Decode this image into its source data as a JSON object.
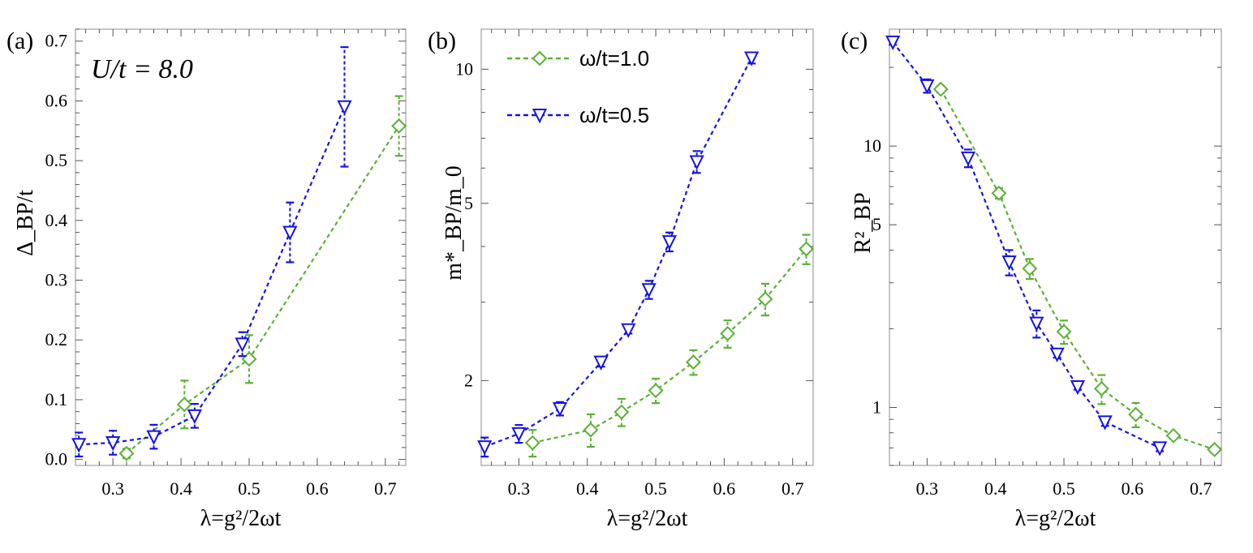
{
  "colors": {
    "green": "#5AB135",
    "blue": "#1414E6",
    "frame": "#a0a0a0"
  },
  "chart_data": [
    {
      "type": "scatter",
      "panel_label": "(a)",
      "annotation": "U/t = 8.0",
      "ylabel": "Δ_BP/t",
      "xlabel": "λ=g²/2ωt",
      "yscale": "linear",
      "xlim": [
        0.245,
        0.73
      ],
      "ylim": [
        -0.01,
        0.72
      ],
      "xticks": [
        0.3,
        0.4,
        0.5,
        0.6,
        0.7
      ],
      "xtick_labels": [
        "0.3",
        "0.4",
        "0.5",
        "0.6",
        "0.7"
      ],
      "yticks": [
        0.0,
        0.1,
        0.2,
        0.3,
        0.4,
        0.5,
        0.6,
        0.7
      ],
      "ytick_labels": [
        "0.0",
        "0.1",
        "0.2",
        "0.3",
        "0.4",
        "0.5",
        "0.6",
        "0.7"
      ],
      "series": [
        {
          "name": "ω/t=1.0",
          "color": "green",
          "marker": "diamond",
          "x": [
            0.32,
            0.405,
            0.5,
            0.72
          ],
          "y": [
            0.01,
            0.092,
            0.168,
            0.558
          ],
          "err": [
            0.008,
            0.04,
            0.04,
            0.05
          ]
        },
        {
          "name": "ω/t=0.5",
          "color": "blue",
          "marker": "triangle-down",
          "x": [
            0.25,
            0.3,
            0.36,
            0.42,
            0.49,
            0.56,
            0.64
          ],
          "y": [
            0.025,
            0.028,
            0.038,
            0.073,
            0.193,
            0.38,
            0.59
          ],
          "err": [
            0.02,
            0.02,
            0.02,
            0.02,
            0.02,
            0.05,
            0.1
          ]
        }
      ]
    },
    {
      "type": "scatter",
      "panel_label": "(b)",
      "ylabel": "m*_BP/m_0",
      "xlabel": "λ=g²/2ωt",
      "yscale": "log",
      "xlim": [
        0.245,
        0.73
      ],
      "ylim": [
        1.29,
        12.3
      ],
      "xticks": [
        0.3,
        0.4,
        0.5,
        0.6,
        0.7
      ],
      "xtick_labels": [
        "0.3",
        "0.4",
        "0.5",
        "0.6",
        "0.7"
      ],
      "yticks": [
        2,
        5,
        10
      ],
      "ytick_labels": [
        "2",
        "5",
        "10"
      ],
      "legend": [
        "ω/t=1.0",
        "ω/t=0.5"
      ],
      "series": [
        {
          "name": "ω/t=1.0",
          "color": "green",
          "marker": "diamond",
          "x": [
            0.32,
            0.405,
            0.45,
            0.5,
            0.555,
            0.605,
            0.66,
            0.72
          ],
          "y": [
            1.45,
            1.55,
            1.7,
            1.9,
            2.2,
            2.55,
            3.05,
            3.95
          ],
          "err": [
            0.1,
            0.13,
            0.12,
            0.12,
            0.14,
            0.18,
            0.25,
            0.3
          ]
        },
        {
          "name": "ω/t=0.5",
          "color": "blue",
          "marker": "triangle-down",
          "x": [
            0.25,
            0.3,
            0.36,
            0.42,
            0.46,
            0.49,
            0.52,
            0.56,
            0.64
          ],
          "y": [
            1.42,
            1.52,
            1.73,
            2.2,
            2.6,
            3.2,
            4.1,
            6.2,
            10.6
          ],
          "err": [
            0.07,
            0.07,
            0.06,
            0.05,
            0.05,
            0.15,
            0.2,
            0.35,
            0.3
          ]
        }
      ]
    },
    {
      "type": "scatter",
      "panel_label": "(c)",
      "ylabel": "R²_BP",
      "xlabel": "λ=g²/2ωt",
      "yscale": "log",
      "xlim": [
        0.245,
        0.73
      ],
      "ylim": [
        0.6,
        28
      ],
      "xticks": [
        0.3,
        0.4,
        0.5,
        0.6,
        0.7
      ],
      "xtick_labels": [
        "0.3",
        "0.4",
        "0.5",
        "0.6",
        "0.7"
      ],
      "yticks": [
        1,
        5,
        10
      ],
      "ytick_labels": [
        "1",
        "5",
        "10"
      ],
      "series": [
        {
          "name": "ω/t=1.0",
          "color": "green",
          "marker": "diamond",
          "x": [
            0.32,
            0.405,
            0.45,
            0.5,
            0.555,
            0.605,
            0.66,
            0.72
          ],
          "y": [
            16.5,
            6.6,
            3.4,
            1.95,
            1.18,
            0.94,
            0.78,
            0.69
          ],
          "err": [
            0.5,
            0.3,
            0.3,
            0.2,
            0.15,
            0.1,
            0.02,
            0.02
          ]
        },
        {
          "name": "ω/t=0.5",
          "color": "blue",
          "marker": "triangle-down",
          "x": [
            0.25,
            0.3,
            0.36,
            0.42,
            0.46,
            0.49,
            0.52,
            0.56,
            0.64
          ],
          "y": [
            25,
            17,
            9,
            3.6,
            2.1,
            1.6,
            1.2,
            0.88,
            0.7
          ],
          "err": [
            0.6,
            1.0,
            0.7,
            0.4,
            0.25,
            0.05,
            0.03,
            0.03,
            0.02
          ]
        }
      ]
    }
  ]
}
